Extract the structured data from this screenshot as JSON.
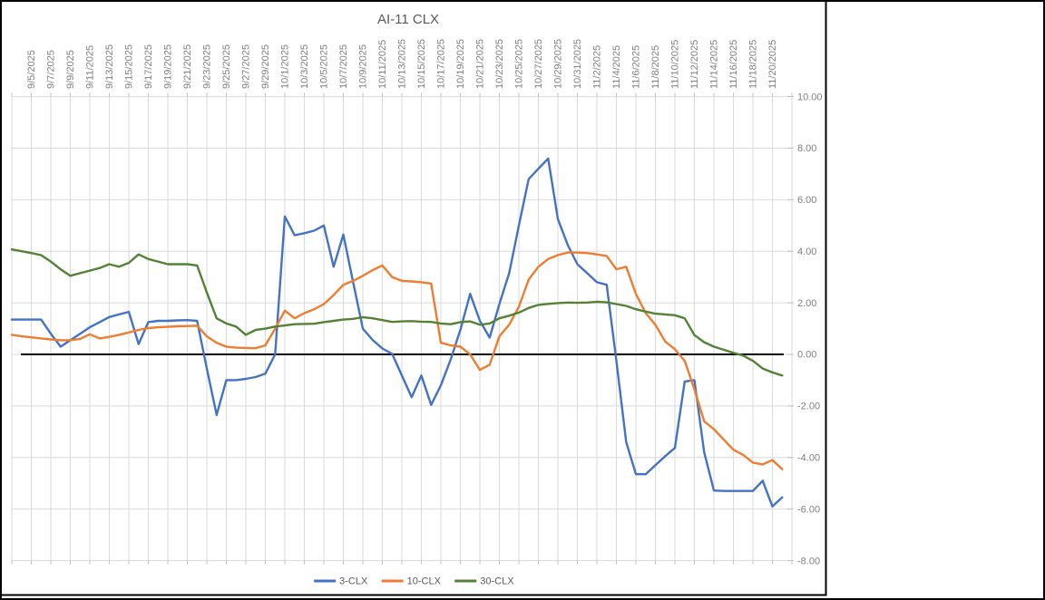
{
  "chart_data": {
    "type": "line",
    "title": "AI-11 CLX",
    "x_axis": {
      "label_position": "top",
      "label_rotation": -90,
      "labels": [
        "9/5/2025",
        "9/7/2025",
        "9/9/2025",
        "9/11/2025",
        "9/13/2025",
        "9/15/2025",
        "9/17/2025",
        "9/19/2025",
        "9/21/2025",
        "9/23/2025",
        "9/25/2025",
        "9/27/2025",
        "9/29/2025",
        "10/1/2025",
        "10/3/2025",
        "10/5/2025",
        "10/7/2025",
        "10/9/2025",
        "10/11/2025",
        "10/13/2025",
        "10/15/2025",
        "10/17/2025",
        "10/19/2025",
        "10/21/2025",
        "10/23/2025",
        "10/25/2025",
        "10/27/2025",
        "10/29/2025",
        "10/31/2025",
        "11/2/2025",
        "11/4/2025",
        "11/6/2025",
        "11/8/2025",
        "11/10/2025",
        "11/12/2025",
        "11/14/2025",
        "11/16/2025",
        "11/18/2025",
        "11/20/2025"
      ]
    },
    "y_axis": {
      "position": "right",
      "min": -8,
      "max": 10,
      "step": 2,
      "tick_labels": [
        "10.00",
        "8.00",
        "6.00",
        "4.00",
        "2.00",
        "0.00",
        "-2.00",
        "-4.00",
        "-6.00",
        "-8.00"
      ]
    },
    "grid": true,
    "zero_line": true,
    "legend": {
      "position": "bottom"
    },
    "dates": [
      "9/3/2025",
      "9/4/2025",
      "9/5/2025",
      "9/6/2025",
      "9/7/2025",
      "9/8/2025",
      "9/9/2025",
      "9/10/2025",
      "9/11/2025",
      "9/12/2025",
      "9/13/2025",
      "9/14/2025",
      "9/15/2025",
      "9/16/2025",
      "9/17/2025",
      "9/18/2025",
      "9/19/2025",
      "9/20/2025",
      "9/21/2025",
      "9/22/2025",
      "9/23/2025",
      "9/24/2025",
      "9/25/2025",
      "9/26/2025",
      "9/27/2025",
      "9/28/2025",
      "9/29/2025",
      "9/30/2025",
      "10/1/2025",
      "10/2/2025",
      "10/3/2025",
      "10/4/2025",
      "10/5/2025",
      "10/6/2025",
      "10/7/2025",
      "10/8/2025",
      "10/9/2025",
      "10/10/2025",
      "10/11/2025",
      "10/12/2025",
      "10/13/2025",
      "10/14/2025",
      "10/15/2025",
      "10/16/2025",
      "10/17/2025",
      "10/18/2025",
      "10/19/2025",
      "10/20/2025",
      "10/21/2025",
      "10/22/2025",
      "10/23/2025",
      "10/24/2025",
      "10/25/2025",
      "10/26/2025",
      "10/27/2025",
      "10/28/2025",
      "10/29/2025",
      "10/30/2025",
      "10/31/2025",
      "11/1/2025",
      "11/2/2025",
      "11/3/2025",
      "11/4/2025",
      "11/5/2025",
      "11/6/2025",
      "11/7/2025",
      "11/8/2025",
      "11/9/2025",
      "11/10/2025",
      "11/11/2025",
      "11/12/2025",
      "11/13/2025",
      "11/14/2025",
      "11/15/2025",
      "11/16/2025",
      "11/17/2025",
      "11/18/2025",
      "11/19/2025",
      "11/20/2025",
      "11/21/2025"
    ],
    "series": [
      {
        "name": "3-CLX",
        "color": "#4472C4",
        "values": [
          1.35,
          1.35,
          1.35,
          1.35,
          0.8,
          0.3,
          0.55,
          0.8,
          1.05,
          1.25,
          1.45,
          1.55,
          1.65,
          0.4,
          1.25,
          1.3,
          1.3,
          1.32,
          1.33,
          1.3,
          -0.55,
          -2.35,
          -1.0,
          -1.0,
          -0.95,
          -0.88,
          -0.75,
          0.0,
          5.35,
          4.62,
          4.7,
          4.8,
          5.0,
          3.4,
          4.65,
          2.8,
          1.0,
          0.56,
          0.23,
          0.02,
          -0.82,
          -1.66,
          -0.82,
          -1.96,
          -1.2,
          -0.2,
          0.95,
          2.35,
          1.3,
          0.65,
          1.95,
          3.15,
          5.0,
          6.8,
          7.2,
          7.6,
          5.25,
          4.25,
          3.5,
          3.15,
          2.8,
          2.7,
          -0.25,
          -3.4,
          -4.65,
          -4.65,
          -4.3,
          -3.95,
          -3.63,
          -1.05,
          -1.0,
          -3.8,
          -5.28,
          -5.3,
          -5.3,
          -5.3,
          -5.3,
          -4.9,
          -5.9,
          -5.55
        ]
      },
      {
        "name": "10-CLX",
        "color": "#ED7D31",
        "values": [
          0.76,
          0.7,
          0.66,
          0.62,
          0.58,
          0.55,
          0.55,
          0.6,
          0.78,
          0.62,
          0.68,
          0.76,
          0.85,
          0.95,
          1.02,
          1.05,
          1.07,
          1.09,
          1.1,
          1.11,
          0.7,
          0.45,
          0.3,
          0.26,
          0.25,
          0.24,
          0.35,
          1.0,
          1.7,
          1.4,
          1.6,
          1.75,
          1.95,
          2.3,
          2.7,
          2.85,
          3.05,
          3.27,
          3.45,
          3.0,
          2.85,
          2.83,
          2.8,
          2.75,
          0.45,
          0.35,
          0.3,
          0.0,
          -0.6,
          -0.4,
          0.7,
          1.15,
          1.85,
          2.9,
          3.4,
          3.7,
          3.85,
          3.95,
          3.95,
          3.93,
          3.88,
          3.82,
          3.3,
          3.4,
          2.35,
          1.6,
          1.15,
          0.5,
          0.2,
          -0.25,
          -1.35,
          -2.6,
          -2.9,
          -3.3,
          -3.7,
          -3.9,
          -4.2,
          -4.27,
          -4.1,
          -4.45
        ]
      },
      {
        "name": "30-CLX",
        "color": "#548235",
        "values": [
          4.07,
          4.0,
          3.93,
          3.85,
          3.6,
          3.3,
          3.05,
          3.15,
          3.25,
          3.35,
          3.5,
          3.4,
          3.55,
          3.88,
          3.7,
          3.6,
          3.5,
          3.5,
          3.5,
          3.45,
          2.4,
          1.4,
          1.2,
          1.08,
          0.76,
          0.95,
          1.0,
          1.08,
          1.12,
          1.17,
          1.18,
          1.19,
          1.25,
          1.3,
          1.35,
          1.38,
          1.44,
          1.4,
          1.33,
          1.26,
          1.28,
          1.29,
          1.27,
          1.26,
          1.2,
          1.17,
          1.25,
          1.28,
          1.15,
          1.2,
          1.4,
          1.5,
          1.62,
          1.8,
          1.92,
          1.96,
          1.99,
          2.01,
          2.0,
          2.01,
          2.04,
          2.02,
          1.95,
          1.88,
          1.75,
          1.66,
          1.58,
          1.55,
          1.52,
          1.4,
          0.75,
          0.47,
          0.3,
          0.18,
          0.06,
          -0.05,
          -0.25,
          -0.55,
          -0.7,
          -0.82
        ]
      }
    ],
    "colors": {
      "grid": "#D9D9D9",
      "axis_text": "#7F7F7F",
      "title_text": "#595959",
      "legend_text": "#595959",
      "zero_line": "#000000",
      "frame": "#000000"
    }
  }
}
